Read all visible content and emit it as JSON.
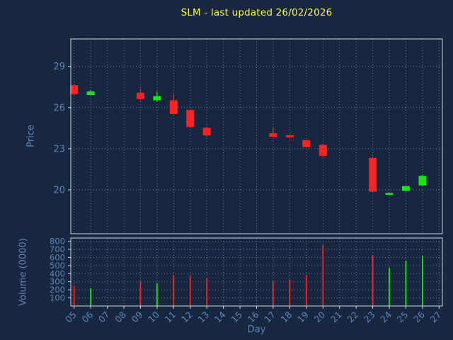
{
  "title": "SLM - last updated 26/02/2026",
  "xlabel": "Day",
  "price_axis_label": "Price",
  "volume_axis_label": "Volume (0000)",
  "colors": {
    "background": "#16273f",
    "title": "#ffff33",
    "axis_text": "#5e84b8",
    "spine": "#cdd5dd",
    "grid": "#dce6f0",
    "up": "#1ee11e",
    "down": "#ff2222"
  },
  "chart_data": {
    "type": "candlestick",
    "title": "SLM - last updated 26/02/2026",
    "xlabel": "Day",
    "price_ylabel": "Price",
    "volume_ylabel": "Volume (0000)",
    "grid": true,
    "x_tick_labels": [
      "05",
      "06",
      "07",
      "08",
      "09",
      "10",
      "11",
      "12",
      "13",
      "14",
      "15",
      "16",
      "17",
      "18",
      "19",
      "20",
      "21",
      "22",
      "23",
      "24",
      "25",
      "26",
      "27"
    ],
    "price_ticks": [
      20,
      23,
      26,
      29
    ],
    "price_range": [
      16.8,
      31.0
    ],
    "volume_ticks": [
      100,
      200,
      300,
      400,
      500,
      600,
      700,
      800
    ],
    "volume_range": [
      0,
      840
    ],
    "candles": [
      {
        "day": 5,
        "open": 27.6,
        "high": 27.7,
        "low": 26.9,
        "close": 27.0,
        "volume": 250
      },
      {
        "day": 6,
        "open": 26.95,
        "high": 27.25,
        "low": 26.9,
        "close": 27.15,
        "volume": 220
      },
      {
        "day": 9,
        "open": 27.05,
        "high": 27.35,
        "low": 26.6,
        "close": 26.65,
        "volume": 300
      },
      {
        "day": 10,
        "open": 26.55,
        "high": 27.15,
        "low": 26.45,
        "close": 26.8,
        "volume": 280
      },
      {
        "day": 11,
        "open": 26.5,
        "high": 26.95,
        "low": 25.5,
        "close": 25.55,
        "volume": 380
      },
      {
        "day": 12,
        "open": 25.8,
        "high": 25.85,
        "low": 24.55,
        "close": 24.6,
        "volume": 370
      },
      {
        "day": 13,
        "open": 24.5,
        "high": 24.6,
        "low": 23.9,
        "close": 24.0,
        "volume": 340
      },
      {
        "day": 17,
        "open": 24.1,
        "high": 24.5,
        "low": 23.85,
        "close": 23.9,
        "volume": 300
      },
      {
        "day": 18,
        "open": 23.95,
        "high": 24.05,
        "low": 23.8,
        "close": 23.85,
        "volume": 330
      },
      {
        "day": 19,
        "open": 23.6,
        "high": 23.65,
        "low": 23.1,
        "close": 23.15,
        "volume": 380
      },
      {
        "day": 20,
        "open": 23.25,
        "high": 23.3,
        "low": 22.4,
        "close": 22.5,
        "volume": 750
      },
      {
        "day": 23,
        "open": 22.3,
        "high": 22.4,
        "low": 19.85,
        "close": 19.9,
        "volume": 620
      },
      {
        "day": 24,
        "open": 19.7,
        "high": 19.8,
        "low": 19.6,
        "close": 19.75,
        "volume": 470
      },
      {
        "day": 25,
        "open": 19.95,
        "high": 20.3,
        "low": 19.9,
        "close": 20.25,
        "volume": 560
      },
      {
        "day": 26,
        "open": 20.35,
        "high": 21.1,
        "low": 20.3,
        "close": 21.0,
        "volume": 620
      }
    ]
  }
}
